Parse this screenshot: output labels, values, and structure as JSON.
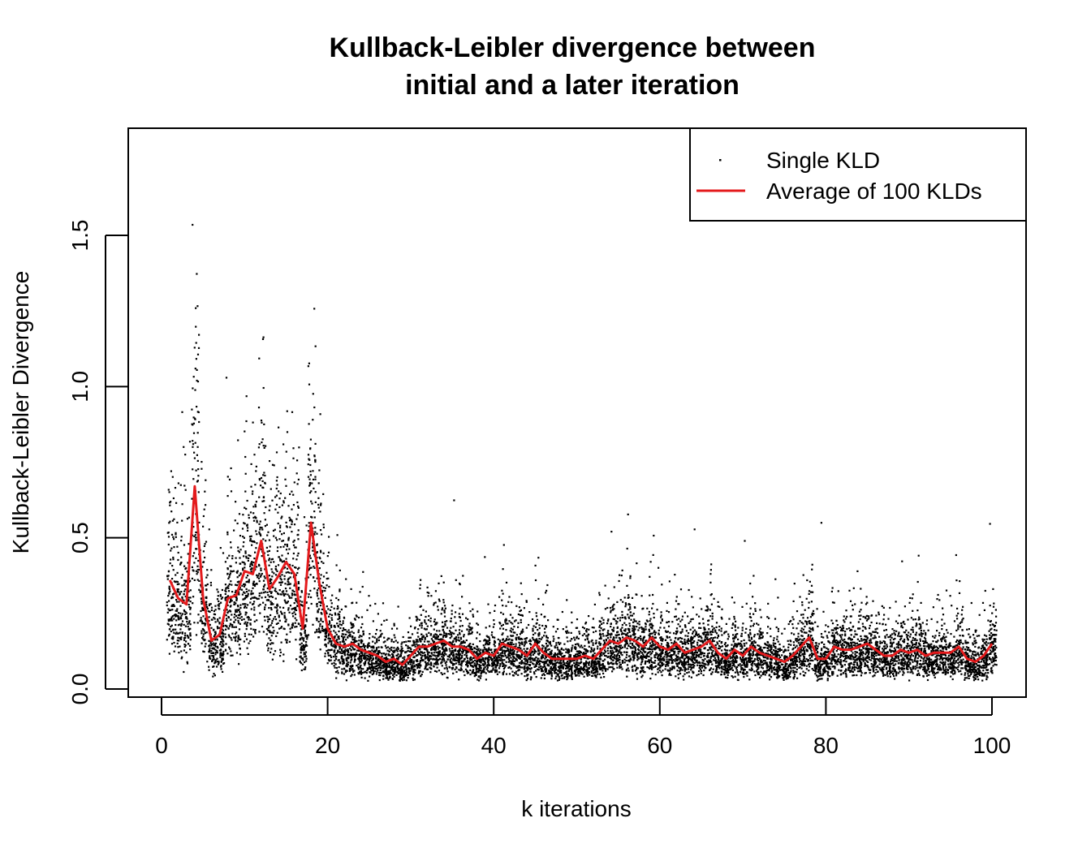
{
  "chart_data": {
    "type": "scatter",
    "title_lines": [
      "Kullback-Leibler divergence between",
      "initial and a later iteration"
    ],
    "xlabel": "k iterations",
    "ylabel": "Kullback-Leibler Divergence",
    "xlim": [
      0,
      100
    ],
    "ylim": [
      0,
      1.8
    ],
    "xticks": [
      0,
      20,
      40,
      60,
      80,
      100
    ],
    "yticks": [
      0.0,
      0.5,
      1.0,
      1.5
    ],
    "ytick_labels": [
      "0.0",
      "0.5",
      "1.0",
      "1.5"
    ],
    "grid": false,
    "legend": {
      "position": "top-right",
      "entries": [
        {
          "label": "Single KLD",
          "style": "point",
          "color": "#000000"
        },
        {
          "label": "Average of 100 KLDs",
          "style": "line",
          "color": "#e41a1c"
        }
      ]
    },
    "series": [
      {
        "name": "Single KLD",
        "style": "point",
        "color": "#000000",
        "points_per_k": 100,
        "x_range": [
          1,
          100
        ],
        "note_visible": "scattered individual KLD values per iteration"
      },
      {
        "name": "Average of 100 KLDs",
        "style": "line",
        "color": "#e41a1c",
        "x": [
          1,
          2,
          3,
          4,
          5,
          6,
          7,
          8,
          9,
          10,
          11,
          12,
          13,
          14,
          15,
          16,
          17,
          18,
          19,
          20,
          21,
          22,
          23,
          24,
          25,
          26,
          27,
          28,
          29,
          30,
          31,
          32,
          33,
          34,
          35,
          36,
          37,
          38,
          39,
          40,
          41,
          42,
          43,
          44,
          45,
          46,
          47,
          48,
          49,
          50,
          51,
          52,
          53,
          54,
          55,
          56,
          57,
          58,
          59,
          60,
          61,
          62,
          63,
          64,
          65,
          66,
          67,
          68,
          69,
          70,
          71,
          72,
          73,
          74,
          75,
          76,
          77,
          78,
          79,
          80,
          81,
          82,
          83,
          84,
          85,
          86,
          87,
          88,
          89,
          90,
          91,
          92,
          93,
          94,
          95,
          96,
          97,
          98,
          99,
          100
        ],
        "y": [
          0.36,
          0.3,
          0.28,
          0.67,
          0.3,
          0.16,
          0.18,
          0.3,
          0.31,
          0.39,
          0.38,
          0.49,
          0.33,
          0.37,
          0.42,
          0.38,
          0.2,
          0.55,
          0.35,
          0.2,
          0.15,
          0.14,
          0.15,
          0.13,
          0.12,
          0.11,
          0.09,
          0.1,
          0.08,
          0.11,
          0.14,
          0.14,
          0.15,
          0.16,
          0.14,
          0.14,
          0.13,
          0.1,
          0.12,
          0.11,
          0.15,
          0.14,
          0.13,
          0.11,
          0.15,
          0.12,
          0.1,
          0.1,
          0.1,
          0.1,
          0.11,
          0.1,
          0.13,
          0.16,
          0.15,
          0.17,
          0.16,
          0.14,
          0.17,
          0.14,
          0.13,
          0.15,
          0.12,
          0.13,
          0.14,
          0.16,
          0.12,
          0.1,
          0.13,
          0.11,
          0.14,
          0.12,
          0.11,
          0.1,
          0.09,
          0.11,
          0.14,
          0.17,
          0.1,
          0.1,
          0.14,
          0.13,
          0.13,
          0.14,
          0.15,
          0.13,
          0.11,
          0.11,
          0.13,
          0.12,
          0.13,
          0.11,
          0.12,
          0.12,
          0.12,
          0.14,
          0.1,
          0.09,
          0.11,
          0.15
        ]
      }
    ]
  }
}
